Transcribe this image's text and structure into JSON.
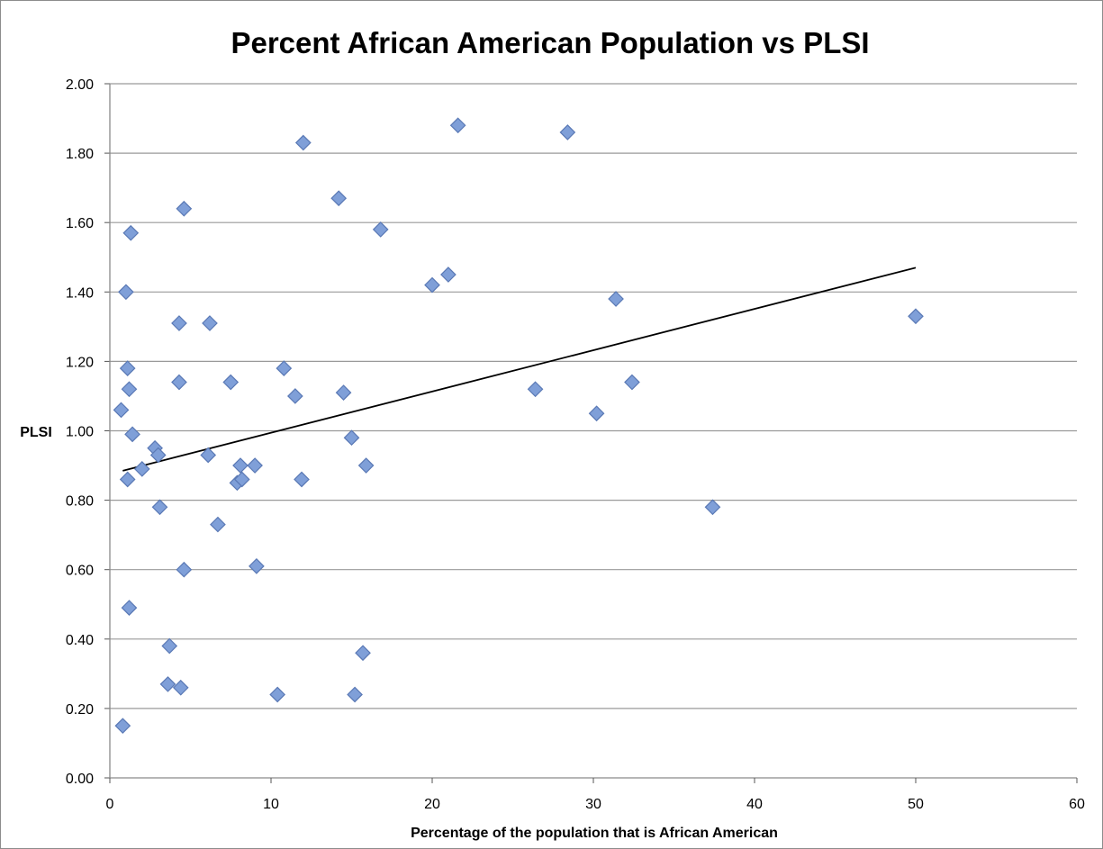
{
  "chart_data": {
    "type": "scatter",
    "title": "Percent African American Population vs PLSI",
    "xlabel": "Percentage of the population that is African American",
    "ylabel": "PLSI",
    "xlim": [
      0,
      60
    ],
    "ylim": [
      0,
      2
    ],
    "xticks": [
      0,
      10,
      20,
      30,
      40,
      50,
      60
    ],
    "xtick_labels": [
      "0",
      "10",
      "20",
      "30",
      "40",
      "50",
      "60"
    ],
    "yticks": [
      0,
      0.2,
      0.4,
      0.6,
      0.8,
      1.0,
      1.2,
      1.4,
      1.6,
      1.8,
      2.0
    ],
    "ytick_labels": [
      "0.00",
      "0.20",
      "0.40",
      "0.60",
      "0.80",
      "1.00",
      "1.20",
      "1.40",
      "1.60",
      "1.80",
      "2.00"
    ],
    "grid": "horizontal",
    "legend": "none",
    "marker": "diamond",
    "marker_color": "#7f9fd8",
    "marker_edge": "#5a79b5",
    "grid_color": "#9a9a9a",
    "trendline": {
      "type": "linear",
      "x": [
        0.8,
        50
      ],
      "y": [
        0.885,
        1.47
      ],
      "color": "#000000"
    },
    "series": [
      {
        "x": [
          0.8,
          0.7,
          1.0,
          1.1,
          1.2,
          1.3,
          1.4,
          1.1,
          1.2,
          2.0,
          2.8,
          3.0,
          3.1,
          3.7,
          3.6,
          4.3,
          4.3,
          4.4,
          4.6,
          4.6,
          6.1,
          6.2,
          6.7,
          7.5,
          7.9,
          8.1,
          8.2,
          9.0,
          9.1,
          10.4,
          10.8,
          11.5,
          11.9,
          12.0,
          14.2,
          14.5,
          15.0,
          15.2,
          15.7,
          15.9,
          16.8,
          20.0,
          21.0,
          21.6,
          26.4,
          28.4,
          30.2,
          31.4,
          32.4,
          37.4,
          50.0
        ],
        "y": [
          0.15,
          1.06,
          1.4,
          1.18,
          1.12,
          1.57,
          0.99,
          0.86,
          0.49,
          0.89,
          0.95,
          0.93,
          0.78,
          0.38,
          0.27,
          1.31,
          1.14,
          0.26,
          1.64,
          0.6,
          0.93,
          1.31,
          0.73,
          1.14,
          0.85,
          0.9,
          0.86,
          0.9,
          0.61,
          0.24,
          1.18,
          1.1,
          0.86,
          1.83,
          1.67,
          1.11,
          0.98,
          0.24,
          0.36,
          0.9,
          1.58,
          1.42,
          1.45,
          1.88,
          1.12,
          1.86,
          1.05,
          1.38,
          1.14,
          0.78,
          1.33
        ]
      }
    ]
  }
}
